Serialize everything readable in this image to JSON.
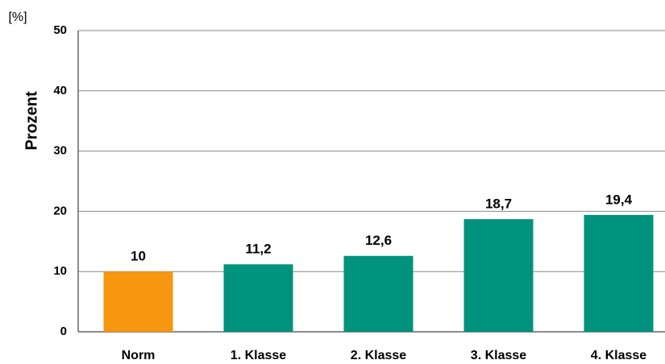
{
  "chart_data": {
    "type": "bar",
    "unit_label": "[%]",
    "y_label": "Prozent",
    "categories": [
      "Norm",
      "1. Klasse",
      "2. Klasse",
      "3. Klasse",
      "4. Klasse"
    ],
    "values": [
      10,
      11.2,
      12.6,
      18.7,
      19.4
    ],
    "value_labels": [
      "10",
      "11,2",
      "12,6",
      "18,7",
      "19,4"
    ],
    "colors": [
      "#f7960f",
      "#00927c",
      "#00927c",
      "#00927c",
      "#00927c"
    ],
    "ylim": [
      0,
      50
    ],
    "yticks": [
      0,
      10,
      20,
      30,
      40,
      50
    ],
    "grid": true
  }
}
